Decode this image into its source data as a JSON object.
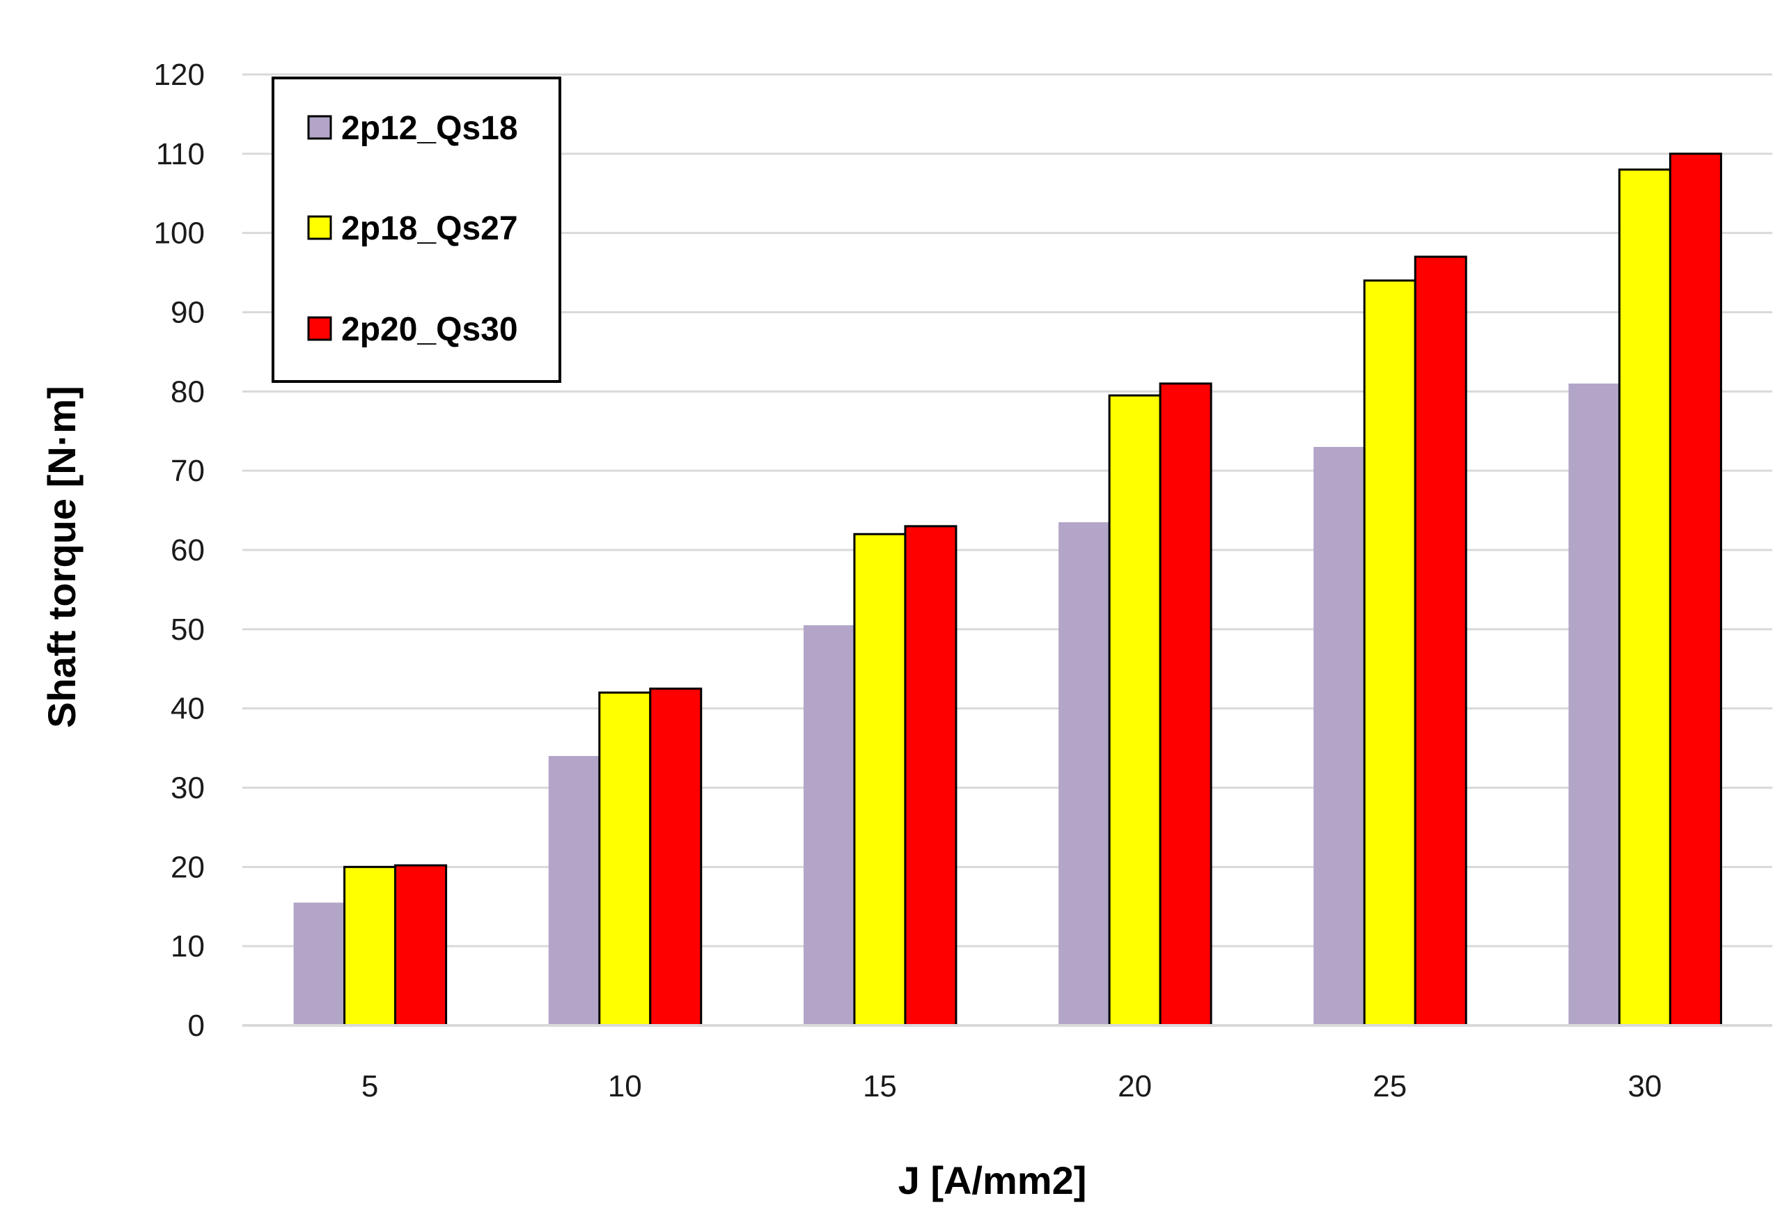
{
  "chart_data": {
    "type": "bar",
    "title": "",
    "xlabel": "J [A/mm2]",
    "ylabel": "Shaft torque [N·m]",
    "categories": [
      "5",
      "10",
      "15",
      "20",
      "25",
      "30"
    ],
    "ylim": [
      0,
      120
    ],
    "yticks": [
      0,
      10,
      20,
      30,
      40,
      50,
      60,
      70,
      80,
      90,
      100,
      110,
      120
    ],
    "grid": true,
    "legend_position": "top-left",
    "series": [
      {
        "name": "2p12_Qs18",
        "color": "#b2a5c8",
        "values": [
          15.5,
          34,
          50.5,
          63.5,
          73,
          81
        ]
      },
      {
        "name": "2p18_Qs27",
        "color": "#ffff00",
        "values": [
          20,
          42,
          62,
          79.5,
          94,
          108
        ]
      },
      {
        "name": "2p20_Qs30",
        "color": "#ff0000",
        "values": [
          20.2,
          42.5,
          63,
          81,
          97,
          110
        ]
      }
    ]
  }
}
